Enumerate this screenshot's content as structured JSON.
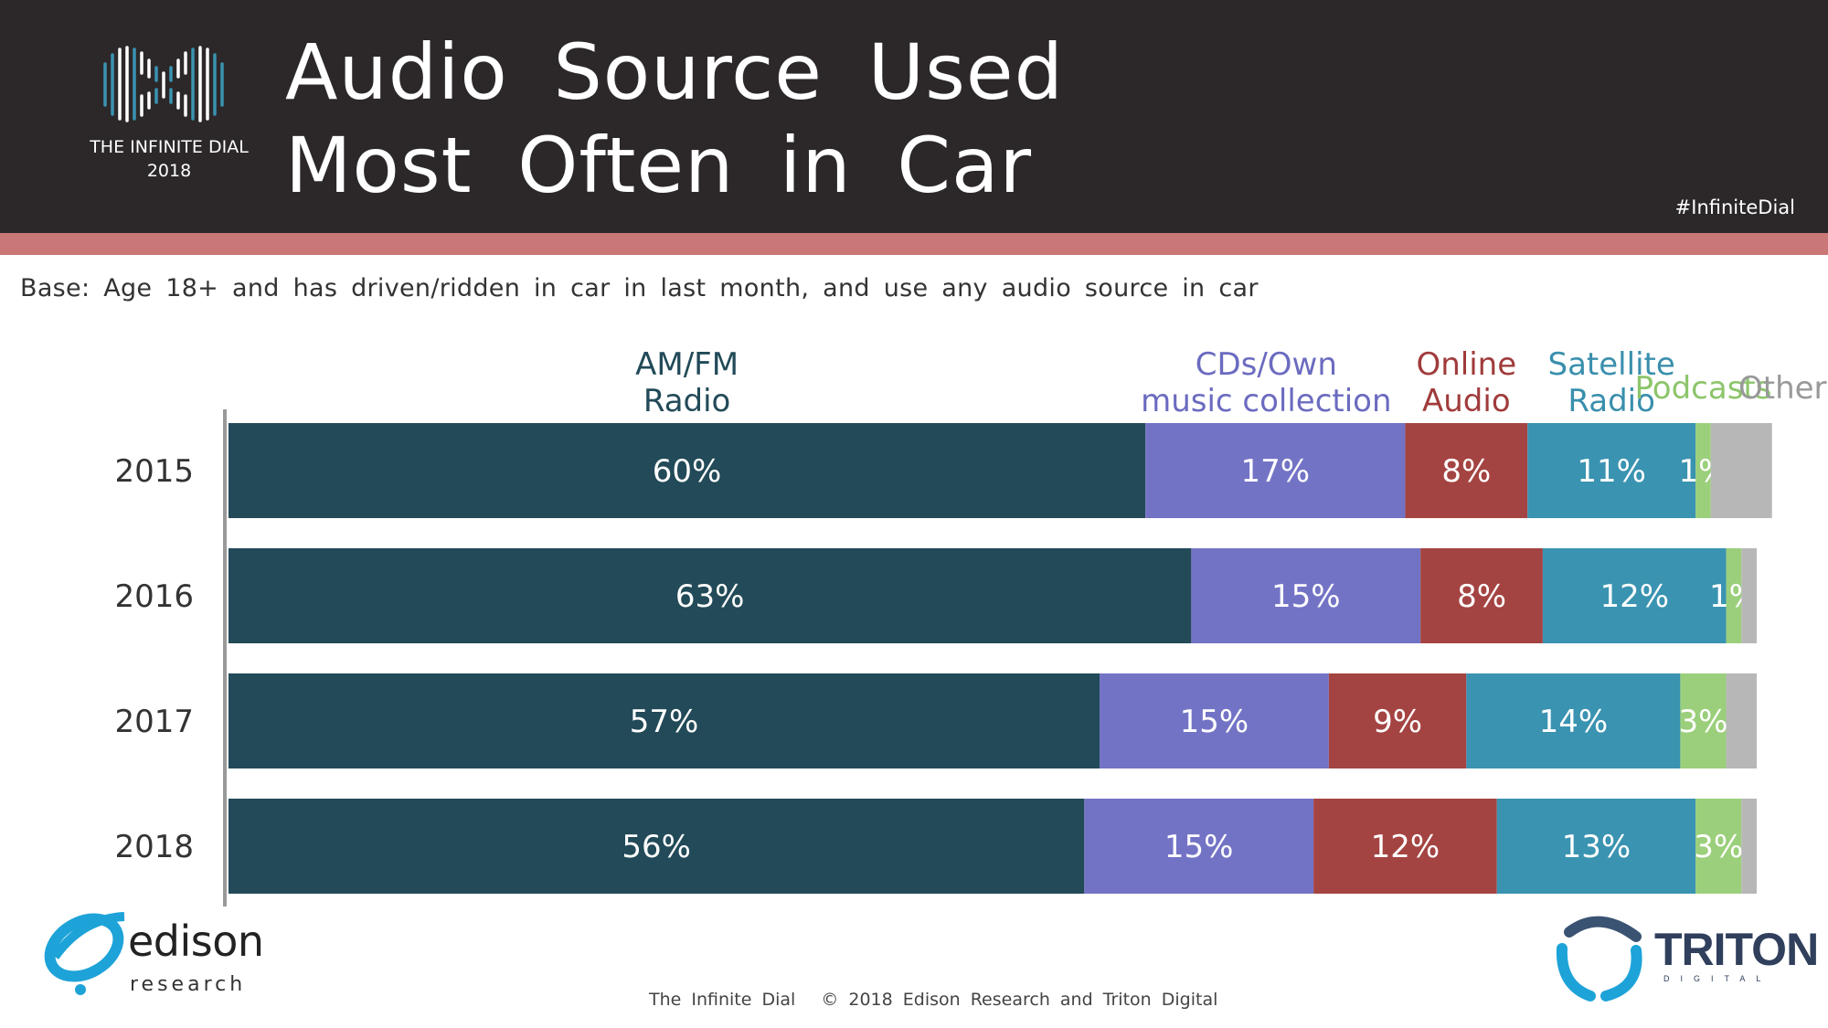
{
  "header": {
    "title_line1": "Audio Source Used",
    "title_line2": "Most Often in Car",
    "logo_line1": "THE INFINITE DIAL",
    "logo_line2": "2018",
    "hashtag": "#InfiniteDial"
  },
  "base_note": "Base: Age 18+ and has driven/ridden in car in last month, and use any audio source in car",
  "chart_data": {
    "type": "bar",
    "orientation": "horizontal",
    "stacked": true,
    "title": "Audio Source Used Most Often in Car",
    "categories": [
      "2015",
      "2016",
      "2017",
      "2018"
    ],
    "series": [
      {
        "name": "AM/FM Radio",
        "label_lines": [
          "AM/FM",
          "Radio"
        ],
        "color": "#224a58",
        "label_color": "#224a58",
        "values": [
          60,
          63,
          57,
          56
        ]
      },
      {
        "name": "CDs/Own music collection",
        "label_lines": [
          "CDs/Own",
          "music collection"
        ],
        "color": "#7373c6",
        "label_color": "#6b6bc0",
        "values": [
          17,
          15,
          15,
          15
        ]
      },
      {
        "name": "Online Audio",
        "label_lines": [
          "Online",
          "Audio"
        ],
        "color": "#a44442",
        "label_color": "#a03b3b",
        "values": [
          8,
          8,
          9,
          12
        ]
      },
      {
        "name": "Satellite Radio",
        "label_lines": [
          "Satellite",
          "Radio"
        ],
        "color": "#3a93b1",
        "label_color": "#3a8fad",
        "values": [
          11,
          12,
          14,
          13
        ]
      },
      {
        "name": "Podcasts",
        "label_lines": [
          "Podcasts"
        ],
        "color": "#9bcf7b",
        "label_color": "#8cc56a",
        "values": [
          1,
          1,
          3,
          3
        ]
      },
      {
        "name": "Other",
        "label_lines": [
          "Other"
        ],
        "color": "#b7b7b7",
        "label_color": "#999999",
        "values": [
          4,
          1,
          2,
          1
        ]
      }
    ],
    "data_labels": [
      [
        "60%",
        "17%",
        "8%",
        "11%",
        "1%",
        null
      ],
      [
        "63%",
        "15%",
        "8%",
        "12%",
        "1%",
        null
      ],
      [
        "57%",
        "15%",
        "9%",
        "14%",
        "3%",
        null
      ],
      [
        "56%",
        "15%",
        "12%",
        "13%",
        "3%",
        null
      ]
    ],
    "xlim": [
      0,
      100
    ],
    "legend": "top, above bars",
    "grid": false
  },
  "footer": {
    "left": "The Infinite Dial",
    "right": "© 2018 Edison Research and Triton Digital"
  },
  "logos": {
    "edison_name": "edison",
    "edison_sub": "research",
    "triton_name": "TRITON",
    "triton_sub": "DIGITAL"
  }
}
